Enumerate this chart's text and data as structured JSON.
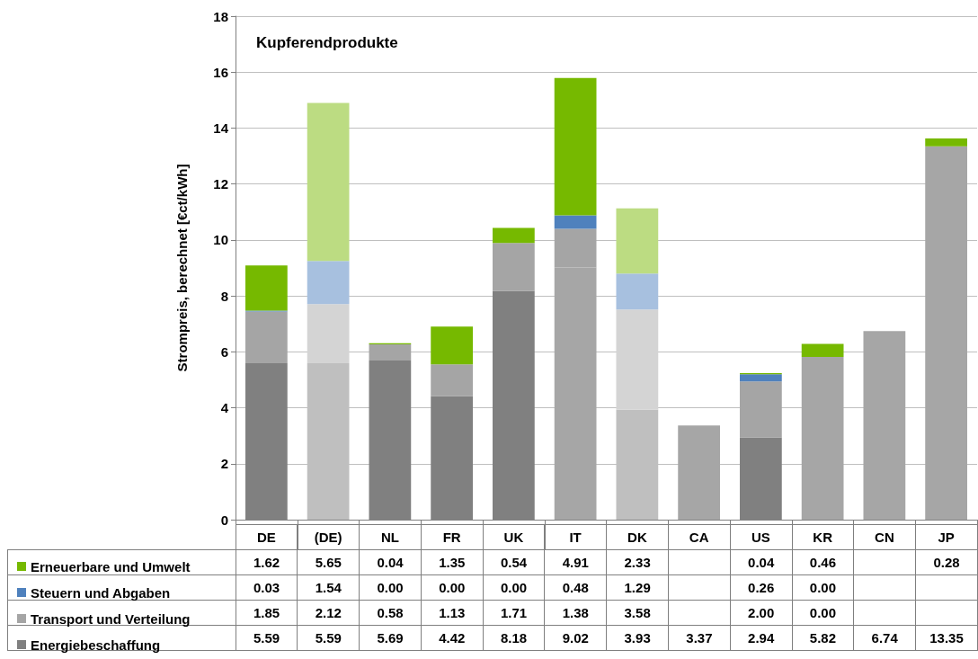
{
  "chart_data": {
    "type": "bar",
    "stacked": true,
    "title": "Kupferendprodukte",
    "ylabel": "Strompreis, berechnet [€ct/kWh]",
    "categories": [
      "DE",
      "(DE)",
      "NL",
      "FR",
      "UK",
      "IT",
      "DK",
      "CA",
      "US",
      "KR",
      "CN",
      "JP"
    ],
    "ylim": [
      0,
      18
    ],
    "yticks": [
      0,
      2,
      4,
      6,
      8,
      10,
      12,
      14,
      16,
      18
    ],
    "grid": "y",
    "legend": "bottom left",
    "series": [
      {
        "name": "Energiebeschaffung",
        "color": "#808080",
        "values": [
          5.59,
          5.59,
          5.69,
          4.42,
          8.18,
          9.02,
          3.93,
          3.37,
          2.94,
          5.82,
          6.74,
          13.35
        ],
        "colors": [
          "#808080",
          "#bfbfbf",
          "#808080",
          "#808080",
          "#808080",
          "#a6a6a6",
          "#bfbfbf",
          "#a6a6a6",
          "#808080",
          "#a6a6a6",
          "#a6a6a6",
          "#a6a6a6"
        ],
        "value_labels": [
          "5.59",
          "5.59",
          "5.69",
          "4.42",
          "8.18",
          "9.02",
          "3.93",
          "3.37",
          "2.94",
          "5.82",
          "6.74",
          "13.35"
        ]
      },
      {
        "name": "Transport und Verteilung",
        "color": "#a5a5a5",
        "values": [
          1.85,
          2.12,
          0.58,
          1.13,
          1.71,
          1.38,
          3.58,
          null,
          2.0,
          0,
          null,
          null
        ],
        "colors": [
          "#a5a5a5",
          "#d4d4d4",
          "#a5a5a5",
          "#a5a5a5",
          "#a5a5a5",
          "#a5a5a5",
          "#d4d4d4",
          "#a5a5a5",
          "#a5a5a5",
          "#a5a5a5",
          "#a5a5a5",
          "#a5a5a5"
        ],
        "value_labels": [
          "1.85",
          "2.12",
          "0.58",
          "1.13",
          "1.71",
          "1.38",
          "3.58",
          null,
          "2.00",
          "0.00",
          null,
          null
        ]
      },
      {
        "name": "Steuern und Abgaben",
        "color": "#4f81bd",
        "values": [
          0.03,
          1.54,
          0,
          0,
          0,
          0.48,
          1.29,
          null,
          0.26,
          0,
          null,
          null
        ],
        "colors": [
          "#4f81bd",
          "#a7c0df",
          "#4f81bd",
          "#4f81bd",
          "#4f81bd",
          "#4f81bd",
          "#a7c0df",
          "#4f81bd",
          "#4f81bd",
          "#4f81bd",
          "#4f81bd",
          "#4f81bd"
        ],
        "value_labels": [
          "0.03",
          "1.54",
          "0.00",
          "0.00",
          "0.00",
          "0.48",
          "1.29",
          null,
          "0.26",
          "0.00",
          null,
          null
        ]
      },
      {
        "name": "Erneuerbare und Umwelt",
        "color": "#76b900",
        "values": [
          1.62,
          5.65,
          0.04,
          1.35,
          0.54,
          4.91,
          2.33,
          null,
          0.04,
          0.46,
          null,
          0.28
        ],
        "colors": [
          "#76b900",
          "#bcdc82",
          "#76b900",
          "#76b900",
          "#76b900",
          "#76b900",
          "#bcdc82",
          "#76b900",
          "#76b900",
          "#76b900",
          "#76b900",
          "#76b900"
        ],
        "value_labels": [
          "1.62",
          "5.65",
          "0.04",
          "1.35",
          "0.54",
          "4.91",
          "2.33",
          null,
          "0.04",
          "0.46",
          null,
          "0.28"
        ]
      }
    ]
  }
}
